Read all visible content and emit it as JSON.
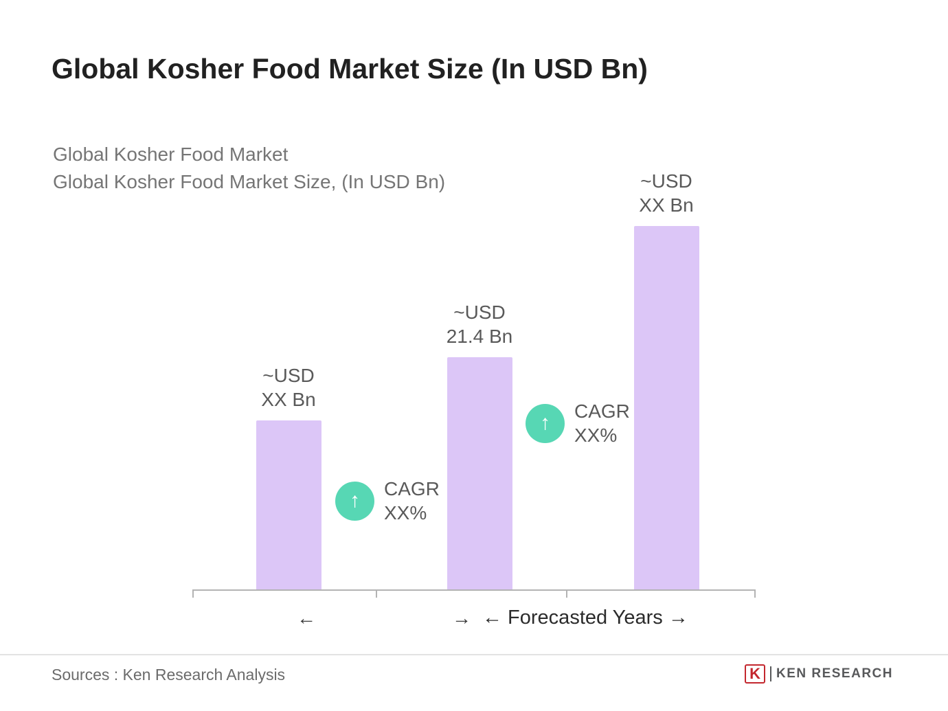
{
  "page": {
    "title": "Global Kosher Food Market Size (In USD Bn)",
    "subtitle_line1": "Global Kosher Food Market",
    "subtitle_line2": "Global Kosher Food Market Size, (In USD Bn)"
  },
  "chart_data": {
    "type": "bar",
    "title": "Global Kosher Food Market Size (In USD Bn)",
    "unit": "USD Bn",
    "bars": [
      {
        "value_label_line1": "~USD",
        "value_label_line2": "XX Bn",
        "value_estimate": 15.6
      },
      {
        "value_label_line1": "~USD",
        "value_label_line2": "21.4 Bn",
        "value_estimate": 21.4
      },
      {
        "value_label_line1": "~USD",
        "value_label_line2": "XX Bn",
        "value_estimate": 33.4
      }
    ],
    "cagr_annotations": [
      {
        "line1": "CAGR",
        "line2": "XX%",
        "icon": "up-arrow"
      },
      {
        "line1": "CAGR",
        "line2": "XX%",
        "icon": "up-arrow"
      }
    ],
    "x_axis": {
      "left_arrow": "←",
      "mid_arrow": "→",
      "forecast_label": "← Forecasted Years →"
    },
    "colors": {
      "bar": "#dcc6f7",
      "cagr_badge": "#57d7b4"
    },
    "ylim": [
      0,
      35
    ],
    "grid": false,
    "legend": false
  },
  "footer": {
    "sources": "Sources : Ken Research Analysis",
    "logo_k": "K",
    "logo_text": "KEN RESEARCH"
  },
  "icons": {
    "up_arrow": "↑"
  }
}
